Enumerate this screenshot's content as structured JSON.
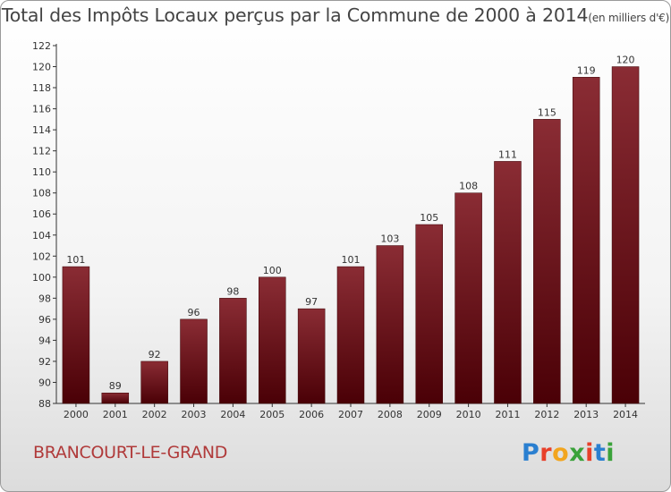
{
  "title": "Total des Impôts Locaux perçus par la Commune de 2000 à 2014",
  "title_unit": "(en milliers d'€)",
  "commune": "BRANCOURT-LE-GRAND",
  "logo": {
    "text": "Proxiti",
    "letters": [
      "P",
      "r",
      "o",
      "x",
      "i",
      "t",
      "i"
    ],
    "colors": [
      "#2a7fd0",
      "#e8402a",
      "#f2a51f",
      "#3aa23a",
      "#e8402a",
      "#2a7fd0",
      "#3aa23a"
    ]
  },
  "chart_data": {
    "type": "bar",
    "categories": [
      "2000",
      "2001",
      "2002",
      "2003",
      "2004",
      "2005",
      "2006",
      "2007",
      "2008",
      "2009",
      "2010",
      "2011",
      "2012",
      "2013",
      "2014"
    ],
    "values": [
      101,
      89,
      92,
      96,
      98,
      100,
      97,
      101,
      103,
      105,
      108,
      111,
      115,
      119,
      120
    ],
    "data_labels": [
      "101",
      "89",
      "92",
      "96",
      "98",
      "100",
      "97",
      "101",
      "103",
      "105",
      "108",
      "111",
      "115",
      "119",
      "120"
    ],
    "y_ticks": [
      88,
      90,
      92,
      94,
      96,
      98,
      100,
      102,
      104,
      106,
      108,
      110,
      112,
      114,
      116,
      118,
      120,
      122
    ],
    "ylim": [
      88,
      122
    ],
    "bar_color": "#6e1016",
    "grid": false
  }
}
